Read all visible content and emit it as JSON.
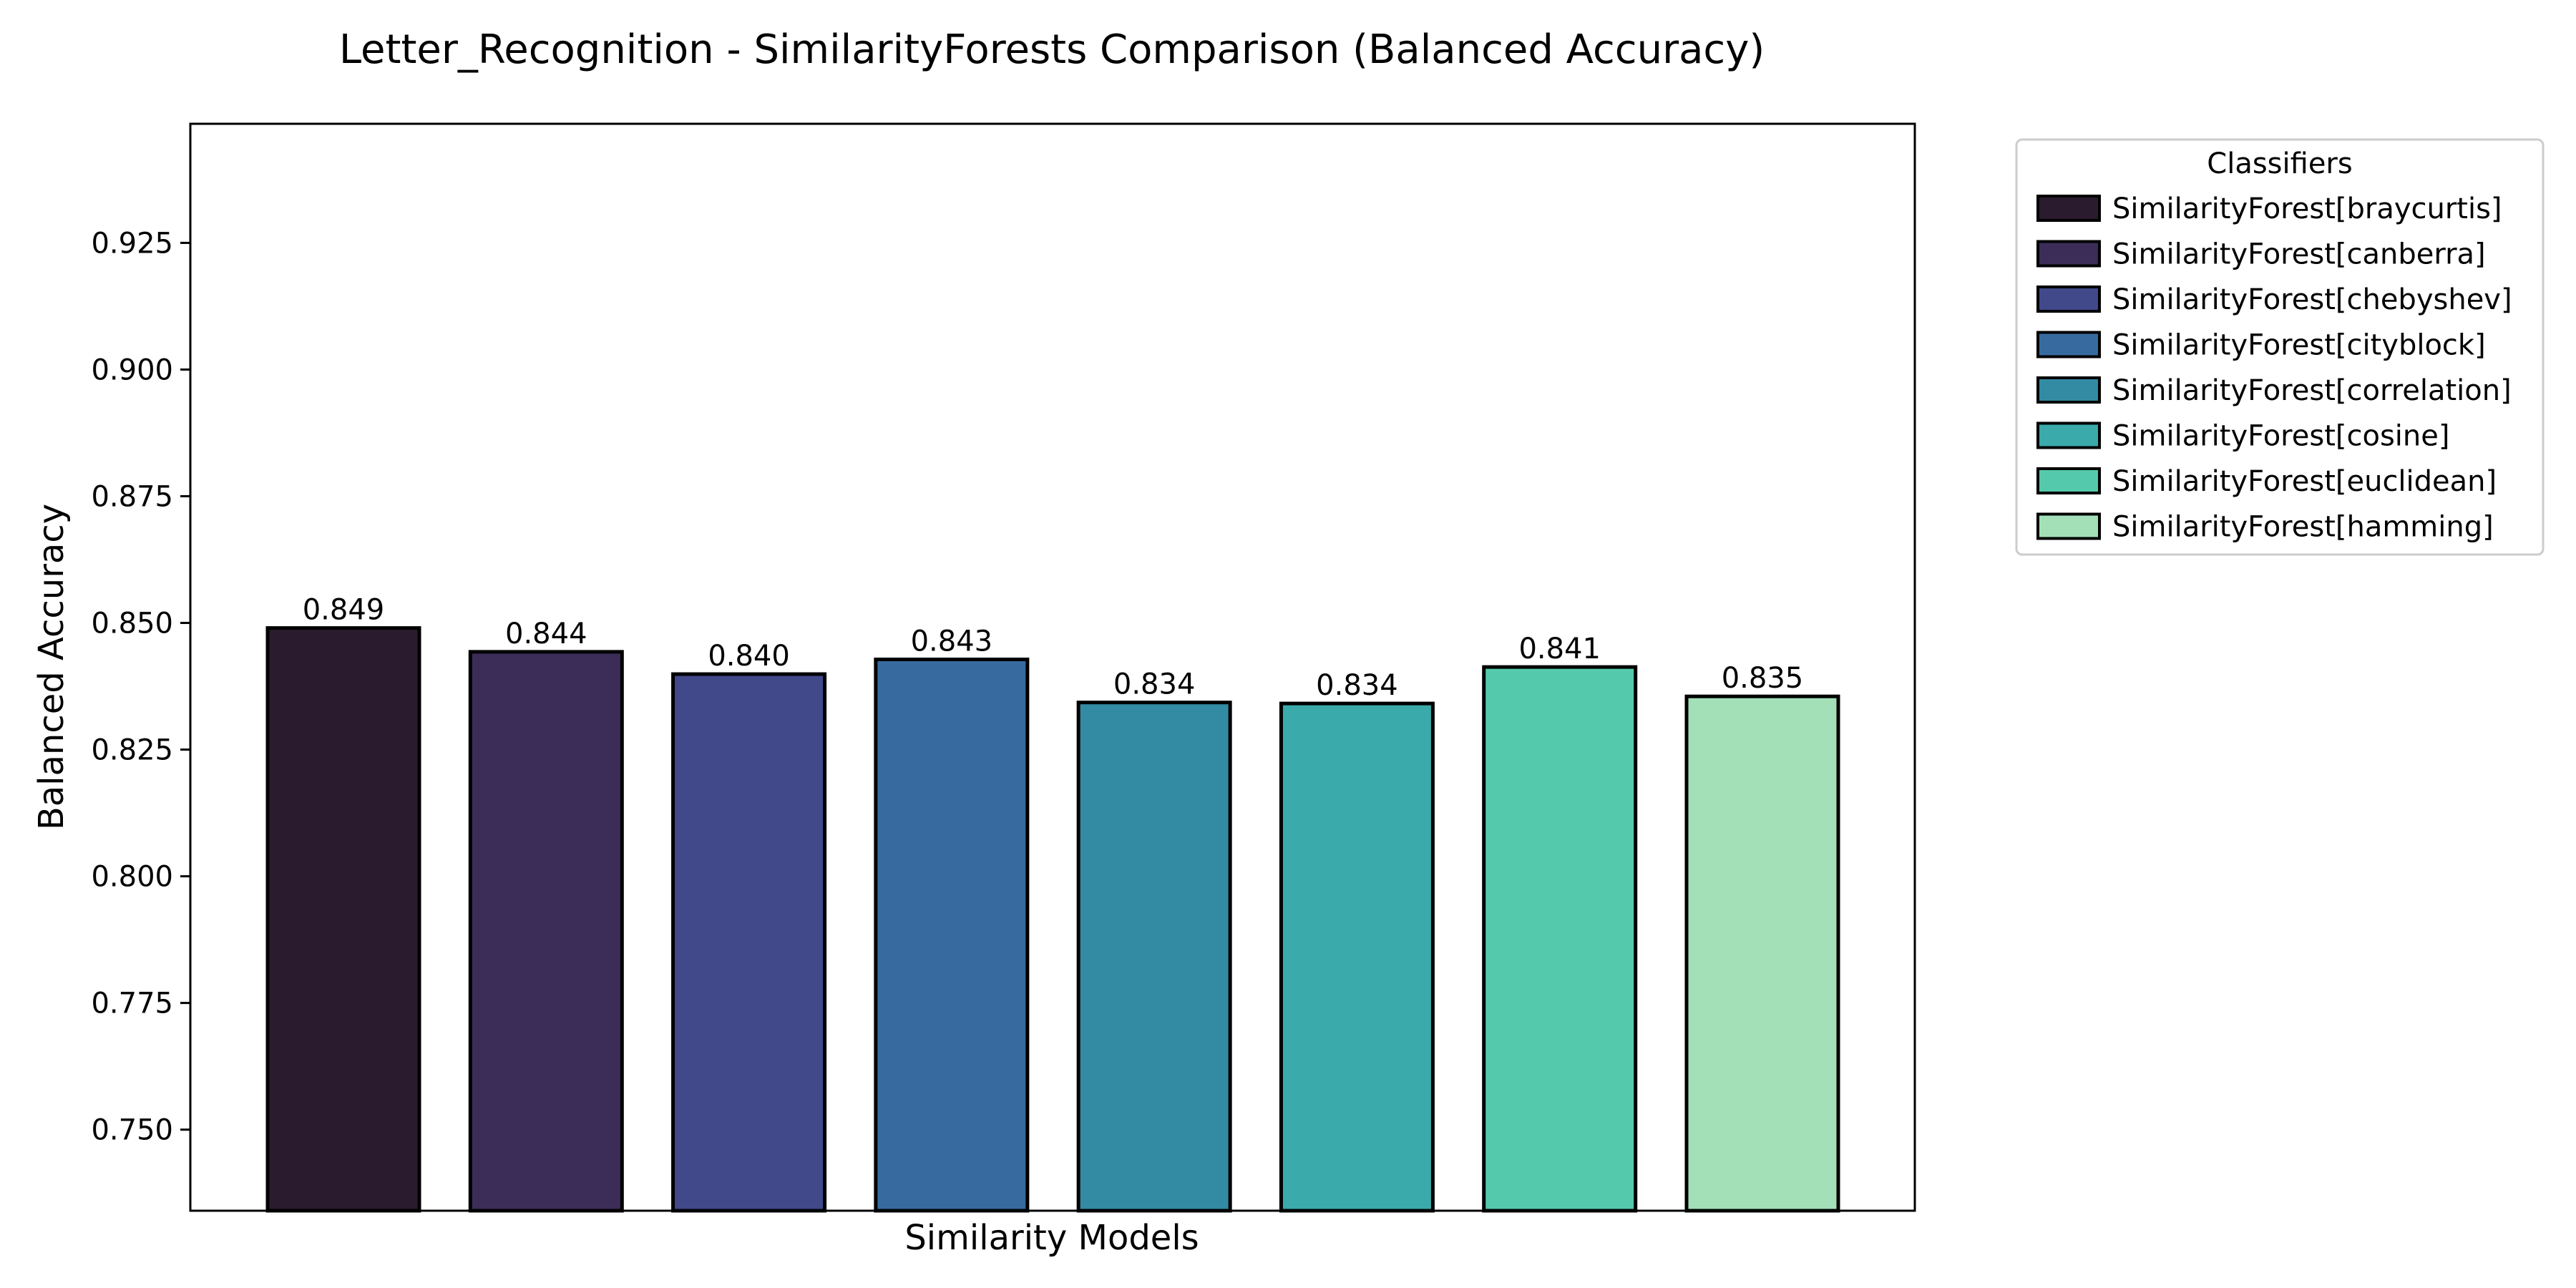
{
  "chart_data": {
    "type": "bar",
    "title": "Letter_Recognition - SimilarityForests Comparison (Balanced Accuracy)",
    "xlabel": "Similarity Models",
    "ylabel": "Balanced Accuracy",
    "ylim": [
      0.734,
      0.9485
    ],
    "yticks": [
      "0.750",
      "0.775",
      "0.800",
      "0.825",
      "0.850",
      "0.875",
      "0.900",
      "0.925"
    ],
    "grid": false,
    "legend": {
      "title": "Classifiers",
      "placement": "outside-top-right"
    },
    "categories": [
      "SimilarityForest[braycurtis]",
      "SimilarityForest[canberra]",
      "SimilarityForest[chebyshev]",
      "SimilarityForest[cityblock]",
      "SimilarityForest[correlation]",
      "SimilarityForest[cosine]",
      "SimilarityForest[euclidean]",
      "SimilarityForest[hamming]"
    ],
    "values": [
      0.849,
      0.8443,
      0.8399,
      0.8428,
      0.8343,
      0.8341,
      0.8413,
      0.8355
    ],
    "value_labels": [
      "0.849",
      "0.844",
      "0.840",
      "0.843",
      "0.834",
      "0.834",
      "0.841",
      "0.835"
    ],
    "colors": [
      "#2a1b2e",
      "#3c2d58",
      "#41498b",
      "#376b9f",
      "#338aa3",
      "#3aaaab",
      "#55c9ab",
      "#a3e0b8"
    ]
  }
}
